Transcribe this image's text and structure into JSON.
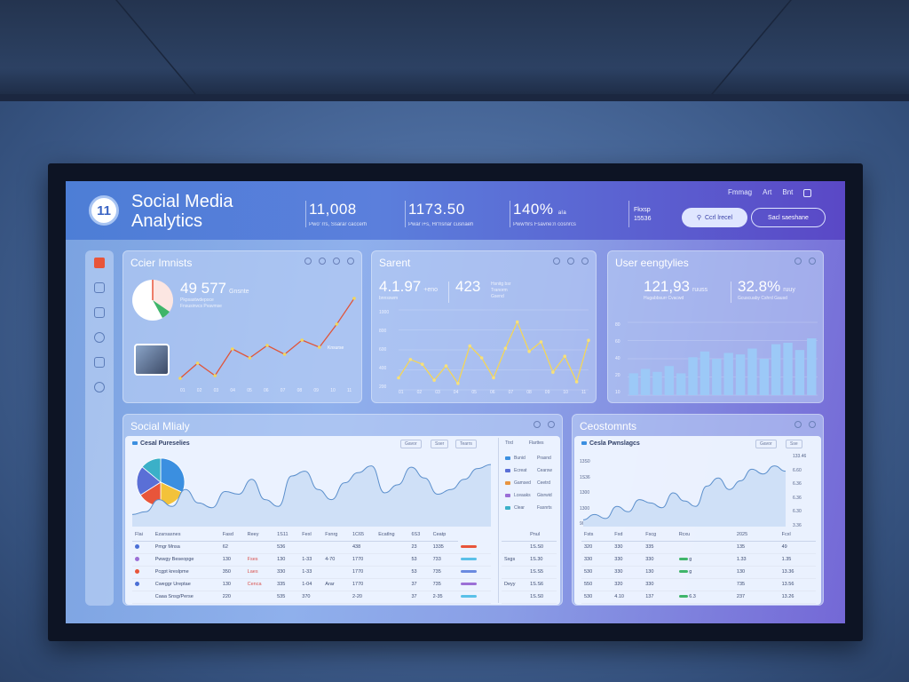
{
  "header": {
    "logo_text": "11",
    "app_title": "Social Media Analytics",
    "kpis": [
      {
        "value": "11,008",
        "sub": "Pwo' rrs, Ssarar caccerh"
      },
      {
        "value": "1173.50",
        "sub": "Pwar i+s, Hr'nsnar cusnaeh"
      },
      {
        "value": "140%",
        "unit": "ala",
        "sub": "Pww'hrs Fsavne:n cosnrcs"
      }
    ],
    "mini_stat": {
      "label": "Fkxsp",
      "value": "15536"
    },
    "top_links": [
      "Fmmag",
      "Art",
      "Bnt"
    ],
    "btn_primary": "Ccrl lrecel",
    "btn_outline": "Sacl saeshane"
  },
  "cards": {
    "c1": {
      "title": "Ccier Imnists",
      "kpi_value": "49 577",
      "kpi_unit": "Gnsnte",
      "kpi_sub1": "Pkpsastwdepoce",
      "kpi_sub2": "Fnsusinvcs Pvavmse",
      "annotation": "Knsurse",
      "ticks_y": [
        "1S0",
        "1S0",
        "300"
      ],
      "line_y": [
        0.05,
        0.22,
        0.08,
        0.38,
        0.28,
        0.42,
        0.32,
        0.48,
        0.4,
        0.66,
        0.95
      ],
      "x_ticks": [
        "01",
        "02",
        "03",
        "04",
        "05",
        "06",
        "07",
        "08",
        "09",
        "10",
        "11"
      ]
    },
    "c2": {
      "title": "Sarent",
      "kpi_value": "4.1.97",
      "kpi_unit": "+eno",
      "kpi_sub": "bnnsswm",
      "kpi2_value": "423",
      "kpi2_sub1": "Hsnitg bsr",
      "kpi2_sub2": "Tranorm",
      "kpi2_sub3": "Gsend",
      "y_ticks": [
        "1000",
        "800",
        "600",
        "400",
        "200"
      ],
      "line_y": [
        0.15,
        0.38,
        0.32,
        0.12,
        0.3,
        0.08,
        0.55,
        0.4,
        0.15,
        0.52,
        0.85,
        0.48,
        0.6,
        0.22,
        0.42,
        0.1,
        0.62
      ],
      "x_ticks": [
        "01",
        "02",
        "03",
        "04",
        "05",
        "06",
        "07",
        "08",
        "09",
        "10",
        "11"
      ]
    },
    "c3": {
      "title": "User eengtylies",
      "kpi_value": "121,93",
      "kpi_unit": "ruuss",
      "kpi_sub": "Hugabbsurr Cvacwd",
      "kpi2_value": "32.8%",
      "kpi2_unit": "ruuy",
      "kpi2_sub": "Gcuscuaby Cshrd Gausd",
      "y_ticks": [
        "80",
        "60",
        "40",
        "20",
        "10"
      ],
      "bars": [
        0.3,
        0.36,
        0.32,
        0.4,
        0.3,
        0.52,
        0.6,
        0.5,
        0.58,
        0.56,
        0.64,
        0.5,
        0.7,
        0.72,
        0.62,
        0.78
      ]
    }
  },
  "bottom_left": {
    "title": "Social Mlialy",
    "panel_title": "Cesal Pureselies",
    "ctrls": [
      "Gavor",
      "Sser",
      "Tearrs"
    ],
    "pie": [
      0.32,
      0.18,
      0.16,
      0.2,
      0.14
    ],
    "wave_y": [
      0.18,
      0.22,
      0.4,
      0.3,
      0.55,
      0.35,
      0.28,
      0.52,
      0.48,
      0.7,
      0.4,
      0.3,
      0.75,
      0.82,
      0.55,
      0.4,
      0.65,
      0.8,
      0.9,
      0.5,
      0.62,
      0.88,
      0.72,
      0.48,
      0.55,
      0.7,
      0.86,
      0.92
    ],
    "legend_header": [
      "Ttrd",
      "Flarttes"
    ],
    "legend": [
      {
        "label": "Bunid",
        "value": "Prasnd",
        "color": "#3b8fe0"
      },
      {
        "label": "Ecreat",
        "value": "Cearsw",
        "color": "#5a6fd6"
      },
      {
        "label": "Gamsed",
        "value": "Ceetrd",
        "color": "#e89440"
      },
      {
        "label": "Lceaaks",
        "value": "Gisrwid",
        "color": "#9b6fd6"
      },
      {
        "label": "Clear",
        "value": "Fasnrts",
        "color": "#3bb0c8"
      }
    ],
    "table": {
      "headers": [
        "Flai",
        "Ezarsasnes",
        "Fasd",
        "Reey",
        "1S11",
        "Fexl",
        "Fsnrg",
        "1C65",
        "Ecatlng",
        "6S3",
        "Ceatp"
      ],
      "rows": [
        {
          "name": "Pmgr Mnsa",
          "cols": [
            "62",
            "",
            "536",
            "",
            "",
            "438",
            "",
            "23",
            "1335"
          ],
          "dot": "#4a6fd6",
          "mini": "#e8553a"
        },
        {
          "name": "Pwwgy Beseopge",
          "cols": [
            "130",
            "Fses",
            "130",
            "1-33",
            "4-70",
            "1770",
            "",
            "53",
            "733"
          ],
          "dot": "#9b6fd6",
          "mini": "#5ac0e8"
        },
        {
          "name": "Pcgpt kreslpme",
          "cols": [
            "350",
            "Laes",
            "330",
            "1-33",
            "",
            "1770",
            "",
            "53",
            "735"
          ],
          "dot": "#e8553a",
          "mini": "#6a8ae0"
        },
        {
          "name": "Cweggr Ureptae",
          "cols": [
            "130",
            "Cenca",
            "335",
            "1-04",
            "Arar",
            "1770",
            "",
            "37",
            "735"
          ],
          "dot": "#4a6fd6",
          "mini": "#9b6fd6"
        },
        {
          "name": "Caaa Snsg/Perse",
          "cols": [
            "220",
            "",
            "535",
            "370",
            "",
            "2-20",
            "",
            "37",
            "2-35"
          ],
          "dot": "",
          "mini": "#5ac0e8"
        }
      ],
      "right_header": "Pnul",
      "right_vals": [
        [
          "",
          "1S.S0"
        ],
        [
          "Sxgs",
          "1S.30"
        ],
        [
          "",
          "1S.S5"
        ],
        [
          "Deyy",
          "1S.S6"
        ],
        [
          "",
          "1S.S0"
        ]
      ]
    }
  },
  "bottom_right": {
    "title": "Ceostomnts",
    "panel_title": "Cesla Pwnslagcs",
    "ctrls": [
      "Gavor",
      "Sse"
    ],
    "y_ticks": [
      "13S0",
      "1S36",
      "1300",
      "1300",
      "900"
    ],
    "right_ticks": [
      "133.46",
      "6.60",
      "6.36",
      "6.36",
      "6.30",
      "3.36"
    ],
    "wave_y": [
      0.1,
      0.18,
      0.12,
      0.3,
      0.22,
      0.4,
      0.35,
      0.28,
      0.5,
      0.38,
      0.3,
      0.6,
      0.72,
      0.55,
      0.68,
      0.85,
      0.78,
      0.9,
      0.82
    ],
    "table": {
      "headers": [
        "Fsts",
        "Fxd",
        "Fscg",
        "Rcxu",
        "",
        "2025",
        "",
        "Fcxl"
      ],
      "rows": [
        [
          "320",
          "330",
          "335",
          "",
          "",
          "135",
          "",
          "49"
        ],
        [
          "330",
          "330",
          "330",
          "g",
          "",
          "1.33",
          "",
          "1.35"
        ],
        [
          "530",
          "330",
          "130",
          "g",
          "",
          "130",
          "",
          "13.36"
        ],
        [
          "550",
          "320",
          "330",
          "",
          "",
          "735",
          "",
          "13.56"
        ],
        [
          "530",
          "4.10",
          "137",
          "6.3",
          "",
          "237",
          "",
          "13.26"
        ]
      ]
    }
  }
}
